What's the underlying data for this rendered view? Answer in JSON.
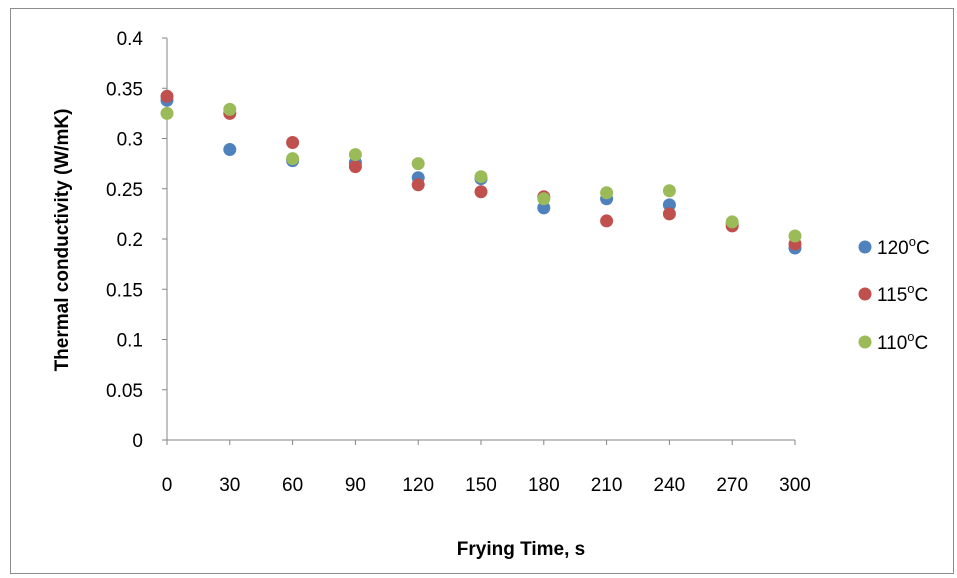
{
  "chart_data": {
    "type": "scatter",
    "title": "",
    "xlabel": "Frying Time, s",
    "ylabel": "Thermal conductivity (W/mK)",
    "xlim": [
      0,
      300
    ],
    "ylim": [
      0,
      0.4
    ],
    "x_ticks": [
      "0",
      "30",
      "60",
      "90",
      "120",
      "150",
      "180",
      "210",
      "240",
      "270",
      "300"
    ],
    "y_ticks": [
      "0",
      "0.05",
      "0.1",
      "0.15",
      "0.2",
      "0.25",
      "0.3",
      "0.35",
      "0.4"
    ],
    "grid": false,
    "legend_position": "right",
    "series": [
      {
        "name": "120°C",
        "label_main": "120",
        "label_sup": "o",
        "label_unit": "C",
        "color": "#4f81bd",
        "x": [
          0,
          30,
          60,
          90,
          120,
          150,
          180,
          210,
          240,
          270,
          300
        ],
        "y": [
          0.338,
          0.289,
          0.278,
          0.276,
          0.261,
          0.26,
          0.231,
          0.24,
          0.234,
          0.215,
          0.191
        ]
      },
      {
        "name": "115°C",
        "label_main": "115",
        "label_sup": "o",
        "label_unit": "C",
        "color": "#c0504d",
        "x": [
          0,
          30,
          60,
          90,
          120,
          150,
          180,
          210,
          240,
          270,
          300
        ],
        "y": [
          0.342,
          0.325,
          0.296,
          0.272,
          0.254,
          0.247,
          0.242,
          0.218,
          0.225,
          0.213,
          0.195
        ]
      },
      {
        "name": "110°C",
        "label_main": "110",
        "label_sup": "o",
        "label_unit": "C",
        "color": "#9bbb59",
        "x": [
          0,
          30,
          60,
          90,
          120,
          150,
          180,
          210,
          240,
          270,
          300
        ],
        "y": [
          0.325,
          0.329,
          0.28,
          0.284,
          0.275,
          0.262,
          0.24,
          0.246,
          0.248,
          0.217,
          0.203
        ]
      }
    ]
  }
}
